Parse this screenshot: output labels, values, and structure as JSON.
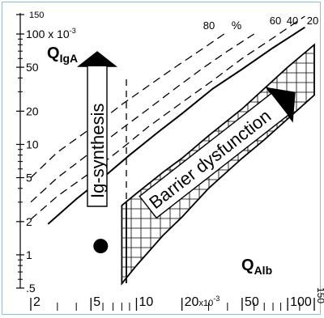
{
  "chart_data": {
    "type": "line",
    "title": "",
    "y_axis": {
      "label_main": "Q",
      "label_sub": "IgA",
      "scale": "log",
      "range": [
        0.5,
        150
      ],
      "ticks": [
        {
          "value": 150,
          "label": "150"
        },
        {
          "value": 100,
          "label": "100 x 10",
          "sup": "-3"
        },
        {
          "value": 50,
          "label": "50"
        },
        {
          "value": 20,
          "label": "20"
        },
        {
          "value": 10,
          "label": "10"
        },
        {
          "value": 5,
          "label": "5"
        },
        {
          "value": 2,
          "label": "2"
        },
        {
          "value": 1,
          "label": "1"
        },
        {
          "value": 0.5,
          "label": ".5"
        }
      ]
    },
    "x_axis": {
      "label_main": "Q",
      "label_sub": "Alb",
      "scale": "log",
      "range": [
        2,
        150
      ],
      "ticks": [
        {
          "value": 2,
          "label": "2"
        },
        {
          "value": 5,
          "label": "5"
        },
        {
          "value": 10,
          "label": "10"
        },
        {
          "value": 20,
          "label": "20",
          "suffix": "x10",
          "sup": "-3"
        },
        {
          "value": 50,
          "label": "50"
        },
        {
          "value": 100,
          "label": "100"
        },
        {
          "value": 150,
          "label": "150"
        }
      ]
    },
    "percent_labels": {
      "unit": "%",
      "values": [
        "80",
        "60",
        "40",
        "20"
      ]
    },
    "series": [
      {
        "name": "20",
        "x": [
          2.6,
          4,
          6,
          9,
          14,
          20,
          32,
          50,
          80,
          130
        ],
        "y": [
          1.9,
          3.2,
          5,
          8,
          13,
          19,
          32,
          48,
          75,
          115
        ]
      },
      {
        "name": "40",
        "x": [
          2,
          3,
          5,
          8,
          12,
          20,
          32,
          50,
          80,
          130
        ],
        "y": [
          2.1,
          3.4,
          5.6,
          9.2,
          14.5,
          24,
          38,
          60,
          92,
          145
        ]
      },
      {
        "name": "60",
        "x": [
          2,
          3,
          5,
          7.5,
          12,
          18,
          28,
          40,
          60
        ],
        "y": [
          3,
          5,
          8.5,
          13,
          21,
          32,
          50,
          70,
          100
        ]
      },
      {
        "name": "80",
        "x": [
          2,
          3,
          5,
          8,
          12,
          18,
          28,
          40
        ],
        "y": [
          5,
          8.5,
          14,
          23,
          34,
          50,
          75,
          105
        ]
      }
    ],
    "hatched_band": {
      "lower_x": [
        8,
        10,
        15,
        20,
        30,
        50,
        70,
        100,
        150
      ],
      "lower_y": [
        0.55,
        0.8,
        1.5,
        2.2,
        4,
        7.5,
        11,
        17,
        28
      ],
      "upper_x": [
        8,
        10,
        15,
        20,
        30,
        50,
        70,
        100,
        150
      ],
      "upper_y": [
        2.8,
        3.6,
        5.6,
        7.5,
        12,
        21,
        32,
        50,
        80
      ]
    },
    "annotations": {
      "left_arrow_text": "Ig-synthesis",
      "right_arrow_text": "Barrier dysfunction"
    },
    "point": {
      "x": 5.8,
      "y": 1.2
    }
  }
}
